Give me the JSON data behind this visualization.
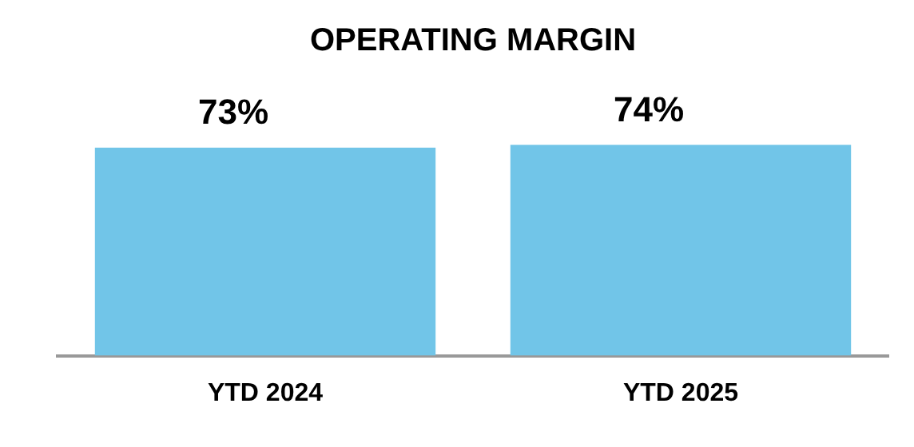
{
  "chart_data": {
    "type": "bar",
    "title": "OPERATING MARGIN",
    "categories": [
      "YTD 2024",
      "YTD 2025"
    ],
    "values": [
      73,
      74
    ],
    "color": "#71c5e8",
    "value_labels": [
      "73%",
      "74%"
    ],
    "grid": false,
    "legend": false
  }
}
